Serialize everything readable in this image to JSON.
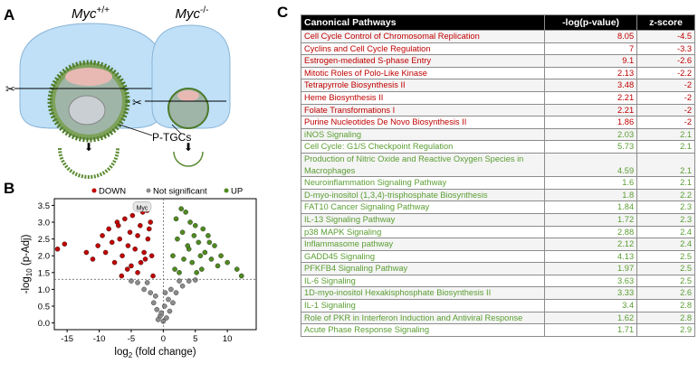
{
  "panels": {
    "a": "A",
    "b": "B",
    "c": "C"
  },
  "diagram": {
    "genotypes": [
      {
        "gene": "Myc",
        "superscript": "+/+"
      },
      {
        "gene": "Myc",
        "superscript": "-/-"
      }
    ],
    "cell_label": "P-TGCs"
  },
  "chart_data": {
    "type": "scatter",
    "x_label": [
      "log",
      "2",
      " (fold change)"
    ],
    "y_label": [
      "-log",
      "10",
      " (p-Adj)"
    ],
    "xlim": [
      -17,
      14.5
    ],
    "ylim": [
      -0.2,
      3.7
    ],
    "xticks": [
      -15,
      -10,
      -5,
      0,
      5,
      10
    ],
    "yticks": [
      {
        "value": 0,
        "label": "0.0"
      },
      {
        "value": 0.5,
        "label": "0.5"
      },
      {
        "value": 1,
        "label": "1.0"
      },
      {
        "value": 1.5,
        "label": "1.5"
      },
      {
        "value": 2,
        "label": "2.0"
      },
      {
        "value": 2.5,
        "label": "2.5"
      },
      {
        "value": 3,
        "label": "3.0"
      },
      {
        "value": 3.5,
        "label": "3.5"
      }
    ],
    "threshold_y": 1.3,
    "threshold_x": 0,
    "legend": "top",
    "annotation": {
      "text": "Myc",
      "x": -3.3,
      "y": 3.45
    },
    "series": [
      {
        "name": "DOWN",
        "color": "#c00000",
        "x": [
          -16.5,
          -15.4,
          -12,
          -11,
          -10.2,
          -9.5,
          -9,
          -8.5,
          -8,
          -7.6,
          -7.2,
          -6.8,
          -6.4,
          -6,
          -5.6,
          -5.2,
          -4.8,
          -4.4,
          -4,
          -3.6,
          -3.2,
          -2.8,
          -2.4,
          -2,
          -1.6,
          -6.5,
          -5,
          -4,
          -3,
          -2.5,
          -7,
          -5.5,
          -3.5,
          -2.2,
          -1.8
        ],
        "values": [
          2.2,
          2.35,
          2.1,
          1.9,
          2.3,
          2.6,
          2.1,
          2.8,
          2.4,
          1.8,
          3.0,
          2.5,
          2.0,
          3.1,
          1.6,
          2.7,
          3.2,
          2.2,
          1.5,
          2.9,
          3.3,
          1.9,
          2.5,
          3.0,
          1.4,
          1.4,
          1.7,
          2.6,
          2.1,
          3.35,
          2.9,
          2.3,
          1.8,
          2.8,
          2.0
        ]
      },
      {
        "name": "Not significant",
        "color": "#8c8c8c",
        "x": [
          -4,
          -3,
          -2,
          -1.5,
          -1,
          -0.5,
          0,
          0.5,
          1,
          1.5,
          2,
          3,
          4,
          -2.5,
          -1.2,
          0.2,
          1.2,
          2.5,
          -0.8,
          0.8,
          -0.3,
          0.3,
          5,
          -5
        ],
        "values": [
          1.2,
          1.0,
          0.9,
          0.6,
          0.4,
          0.2,
          0.05,
          0.15,
          0.35,
          0.6,
          0.9,
          1.1,
          1.25,
          1.2,
          0.8,
          0.5,
          1.0,
          1.25,
          0.1,
          0.7,
          0.3,
          0.9,
          1.28,
          1.25
        ]
      },
      {
        "name": "UP",
        "color": "#4f8a1f",
        "x": [
          1.5,
          2,
          2.5,
          3,
          3.5,
          4,
          4.5,
          5,
          5.5,
          6,
          6.5,
          7,
          7.5,
          8,
          8.5,
          9,
          10,
          11.5,
          12.2,
          2.2,
          3.2,
          4.2,
          5.2,
          6.2,
          7.2,
          1.8,
          2.8,
          3.8,
          4.8,
          5.8
        ],
        "values": [
          2.0,
          3.1,
          1.5,
          2.7,
          3.3,
          2.2,
          1.8,
          2.9,
          2.4,
          1.6,
          2.1,
          2.6,
          1.9,
          2.3,
          1.7,
          2.0,
          1.8,
          1.6,
          1.4,
          2.5,
          1.9,
          3.0,
          1.5,
          2.8,
          2.4,
          1.6,
          3.4,
          2.3,
          2.6,
          2.0
        ]
      }
    ]
  },
  "table": {
    "header": [
      "Canonical Pathways",
      "-log(p-value)",
      "z-score"
    ],
    "rows": [
      {
        "color": "#c00000",
        "cells": [
          "Cell Cycle Control of Chromosomal Replication",
          8.05,
          -4.5
        ]
      },
      {
        "color": "#c00000",
        "cells": [
          "Cyclins and Cell Cycle Regulation",
          7,
          -3.3
        ]
      },
      {
        "color": "#c00000",
        "cells": [
          "Estrogen-mediated S-phase Entry",
          9.1,
          -2.6
        ]
      },
      {
        "color": "#c00000",
        "cells": [
          "Mitotic Roles of Polo-Like Kinase",
          2.13,
          -2.2
        ]
      },
      {
        "color": "#c00000",
        "cells": [
          "Tetrapyrrole Biosynthesis II",
          3.48,
          -2
        ]
      },
      {
        "color": "#c00000",
        "cells": [
          "Heme Biosynthesis II",
          2.21,
          -2
        ]
      },
      {
        "color": "#c00000",
        "cells": [
          "Folate Transformations I",
          2.21,
          -2
        ]
      },
      {
        "color": "#c00000",
        "cells": [
          "Purine Nucleotides De Novo Biosynthesis II",
          1.86,
          -2
        ]
      },
      {
        "color": "#5a9e32",
        "cells": [
          "iNOS Signaling",
          2.03,
          2.1
        ]
      },
      {
        "color": "#5a9e32",
        "cells": [
          "Cell Cycle: G1/S Checkpoint Regulation",
          5.73,
          2.1
        ]
      },
      {
        "color": "#5a9e32",
        "cells": [
          "Production of Nitric Oxide and Reactive Oxygen Species in Macrophages",
          4.59,
          2.1
        ]
      },
      {
        "color": "#5a9e32",
        "cells": [
          "Neuroinflammation Signaling Pathway",
          1.6,
          2.1
        ]
      },
      {
        "color": "#5a9e32",
        "cells": [
          "D-myo-inositol (1,3,4)-trisphosphate Biosynthesis",
          1.8,
          2.2
        ]
      },
      {
        "color": "#5a9e32",
        "cells": [
          "FAT10 Cancer Signaling Pathway",
          1.84,
          2.3
        ]
      },
      {
        "color": "#5a9e32",
        "cells": [
          "IL-13 Signaling Pathway",
          1.72,
          2.3
        ]
      },
      {
        "color": "#5a9e32",
        "cells": [
          "p38 MAPK Signaling",
          2.88,
          2.4
        ]
      },
      {
        "color": "#5a9e32",
        "cells": [
          "Inflammasome pathway",
          2.12,
          2.4
        ]
      },
      {
        "color": "#5a9e32",
        "cells": [
          "GADD45 Signaling",
          4.13,
          2.5
        ]
      },
      {
        "color": "#5a9e32",
        "cells": [
          "PFKFB4 Signaling Pathway",
          1.97,
          2.5
        ]
      },
      {
        "color": "#5a9e32",
        "cells": [
          "IL-6 Signaling",
          3.63,
          2.5
        ]
      },
      {
        "color": "#5a9e32",
        "cells": [
          "1D-myo-inositol Hexakisphosphate Biosynthesis II",
          3.33,
          2.6
        ]
      },
      {
        "color": "#5a9e32",
        "cells": [
          "IL-1 Signaling",
          3.4,
          2.8
        ]
      },
      {
        "color": "#5a9e32",
        "cells": [
          "Role of PKR in Interferon Induction and Antiviral Response",
          1.62,
          2.8
        ]
      },
      {
        "color": "#5a9e32",
        "cells": [
          "Acute Phase Response Signaling",
          1.71,
          2.9
        ]
      }
    ]
  }
}
